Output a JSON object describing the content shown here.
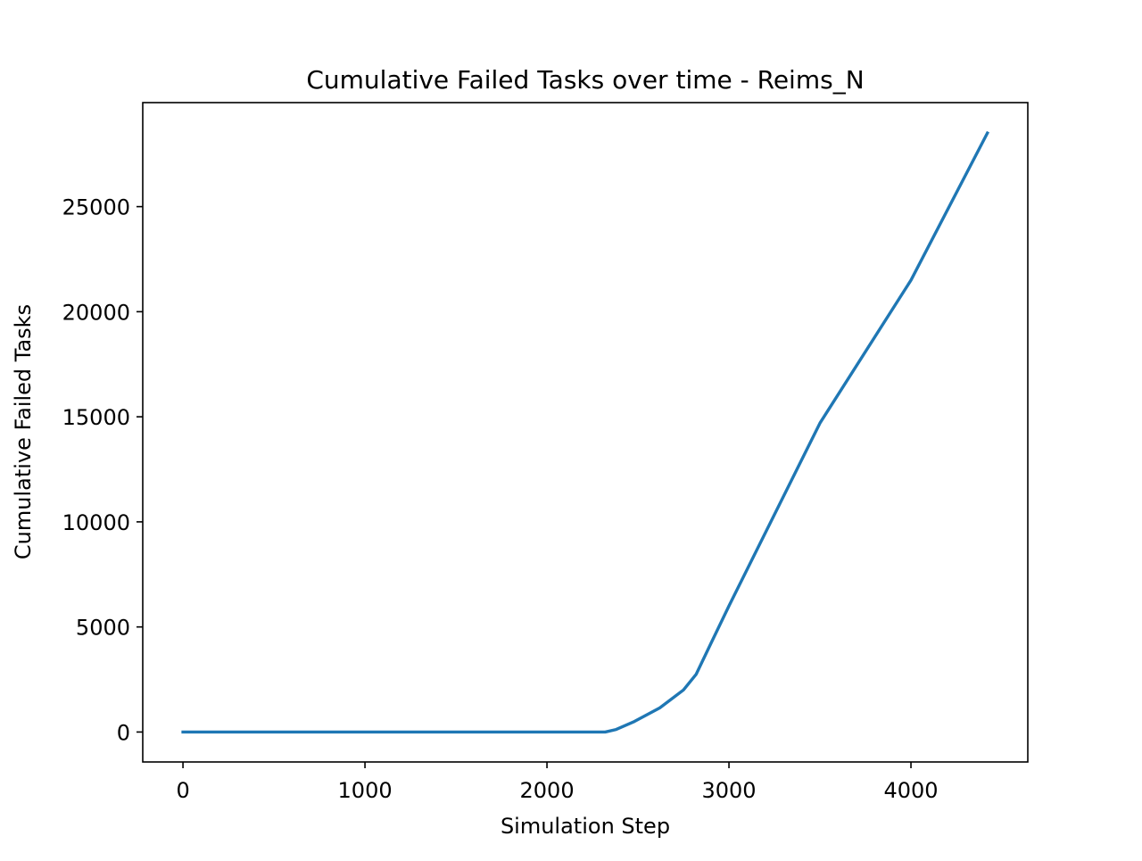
{
  "chart_data": {
    "type": "line",
    "title": "Cumulative Failed Tasks over time - Reims_N",
    "xlabel": "Simulation Step",
    "ylabel": "Cumulative Failed Tasks",
    "xlim": [
      -221,
      4642
    ],
    "ylim": [
      -1425,
      29950
    ],
    "xticks": [
      0,
      1000,
      2000,
      3000,
      4000
    ],
    "xtick_labels": [
      "0",
      "1000",
      "2000",
      "3000",
      "4000"
    ],
    "yticks": [
      0,
      5000,
      10000,
      15000,
      20000,
      25000
    ],
    "ytick_labels": [
      "0",
      "5000",
      "10000",
      "15000",
      "20000",
      "25000"
    ],
    "grid": false,
    "legend": "none",
    "series": [
      {
        "color": "#1f77b4",
        "x": [
          0,
          500,
          1000,
          1500,
          2000,
          2320,
          2380,
          2480,
          2620,
          2750,
          2820,
          2900,
          3000,
          3500,
          4000,
          4420
        ],
        "y": [
          0,
          0,
          0,
          0,
          0,
          0,
          120,
          500,
          1150,
          2000,
          2750,
          4200,
          6000,
          14700,
          21500,
          28500
        ]
      }
    ]
  }
}
